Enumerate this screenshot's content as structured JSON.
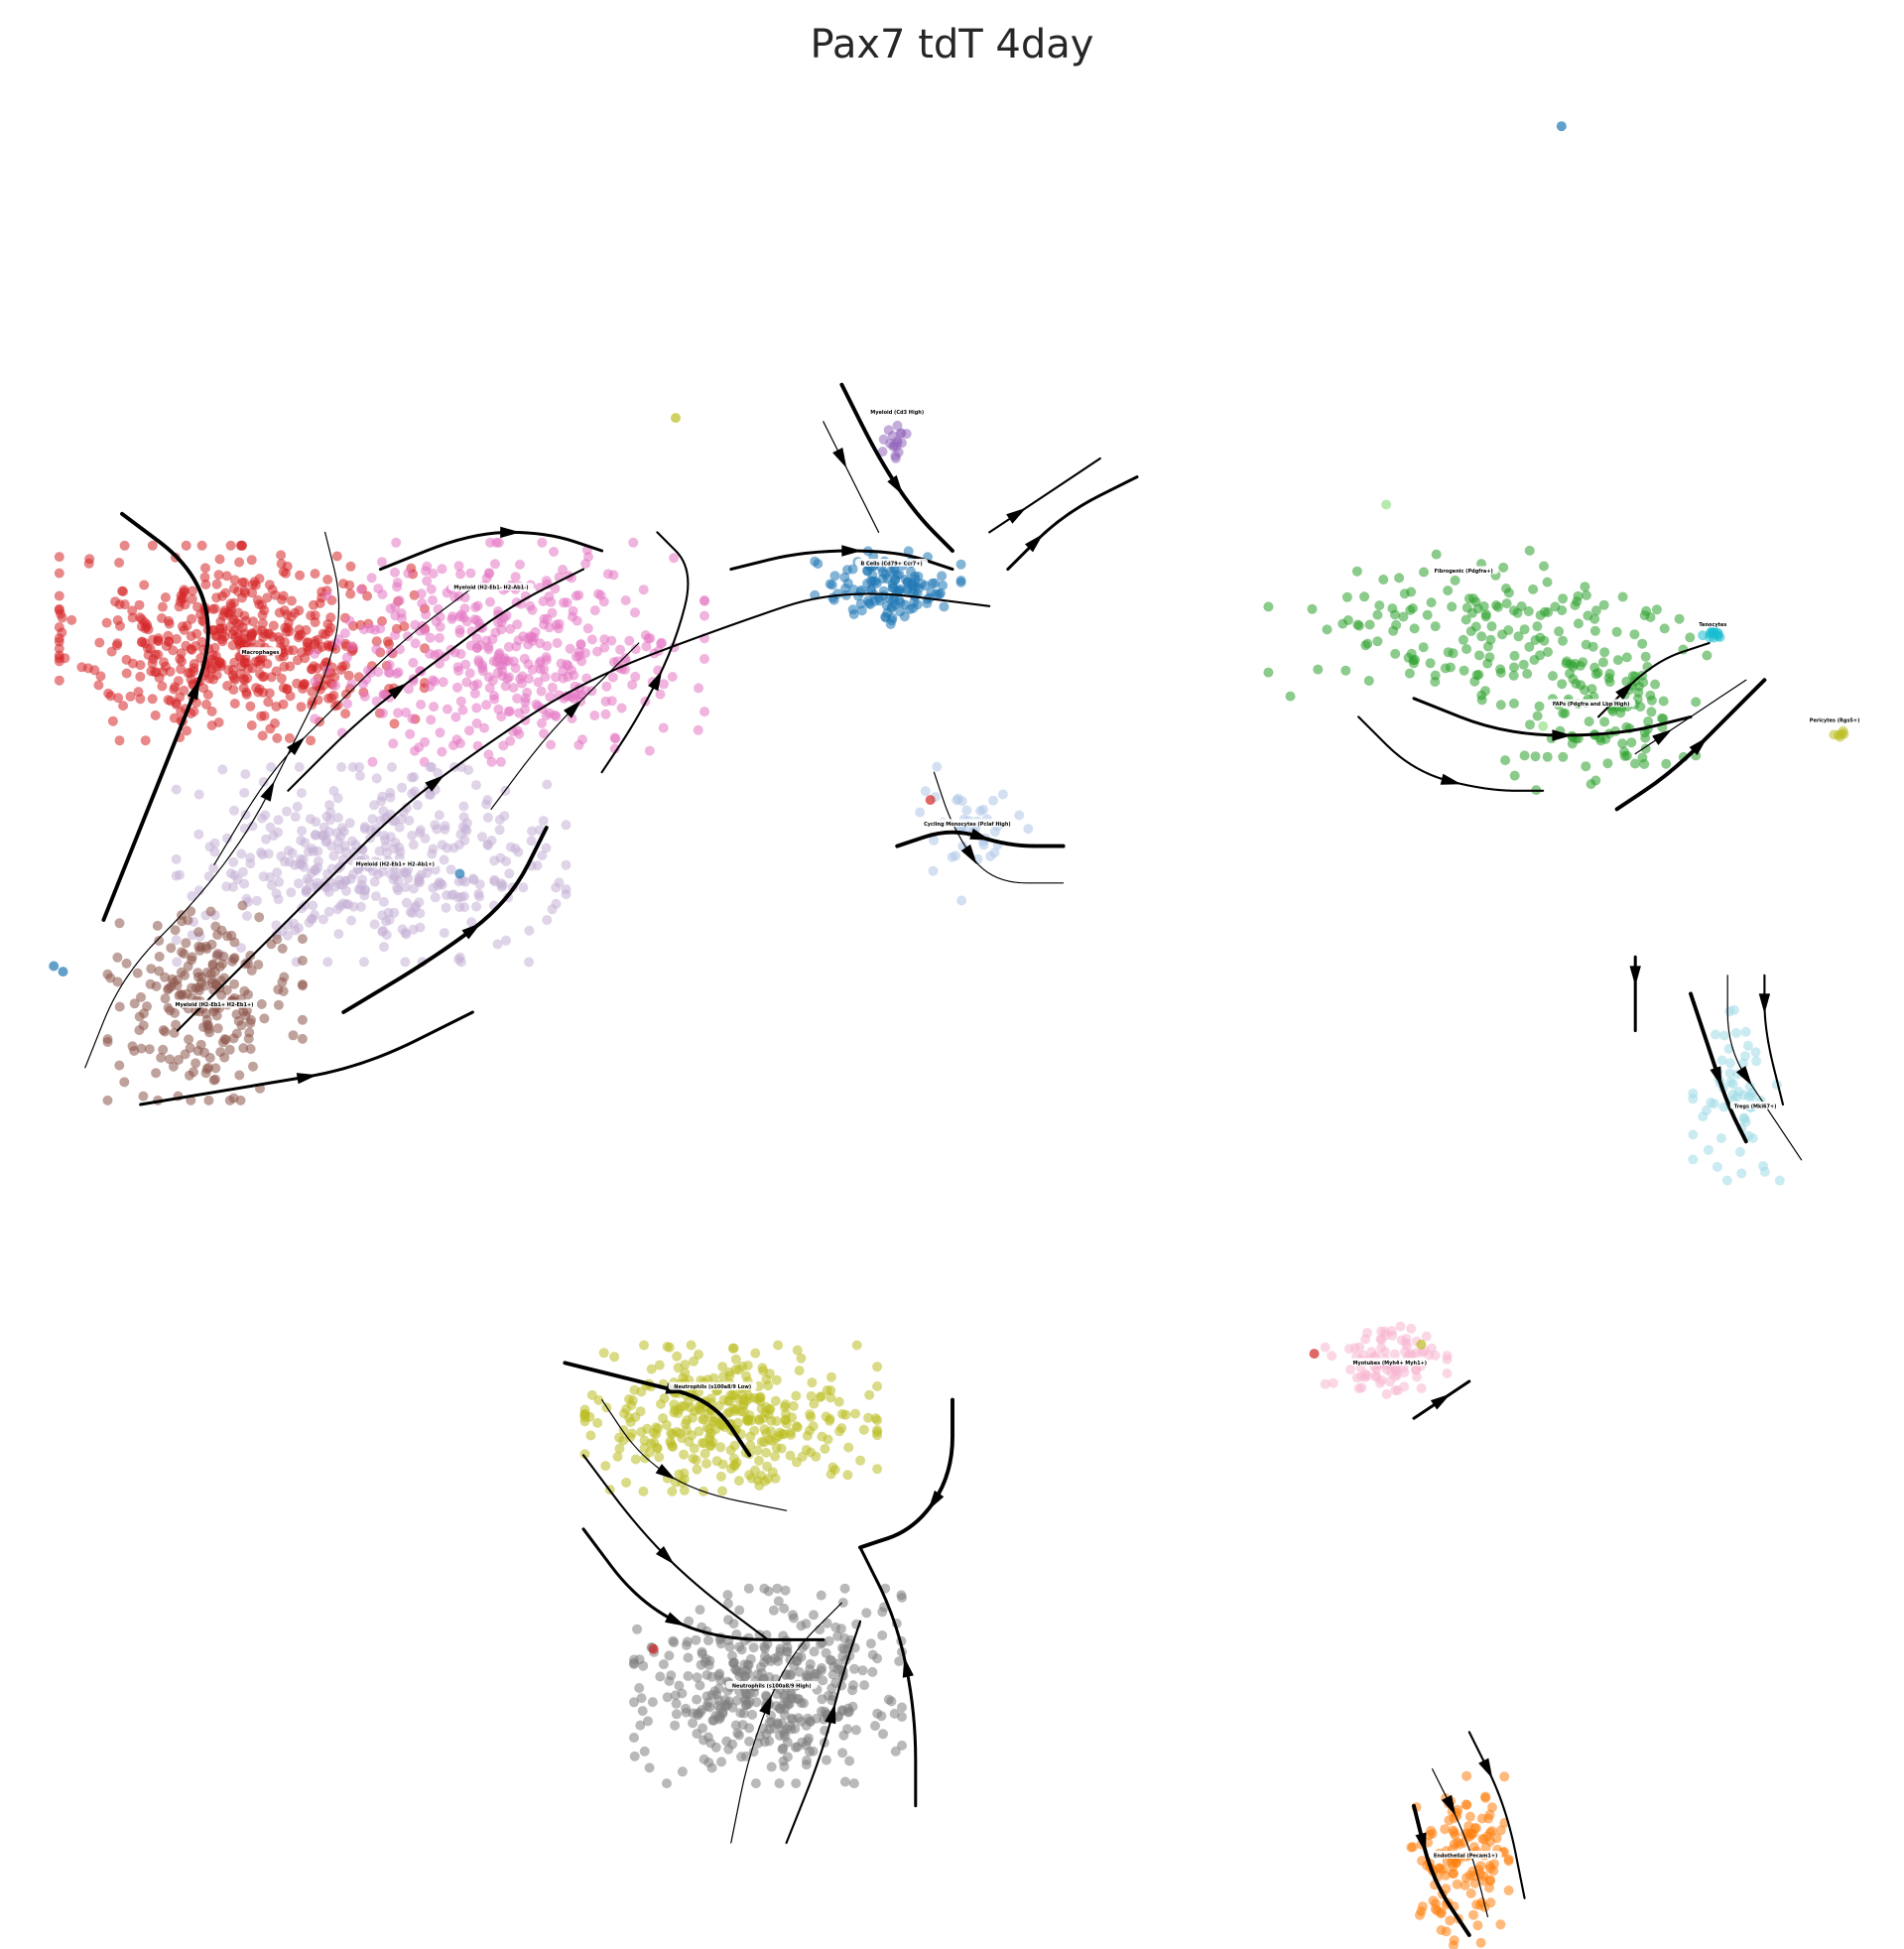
{
  "chart_data": {
    "type": "scatter",
    "title": "Pax7 tdT 4day",
    "xlabel": "",
    "ylabel": "",
    "grid": false,
    "axes_visible": false,
    "legend": "on data",
    "clusters": [
      {
        "name": "Macrophages",
        "color": "#d62728",
        "x": 0.115,
        "y": 0.7,
        "sx": 0.075,
        "sy": 0.04,
        "n": 520
      },
      {
        "name": "Myeloid (H2-Eb1- H2-Ab1-)",
        "color": "#e377c2",
        "x": 0.26,
        "y": 0.695,
        "sx": 0.08,
        "sy": 0.045,
        "n": 420
      },
      {
        "name": "Myeloid (H2-Eb1+ H2-Ab1+)",
        "color": "#c5b0d5",
        "x": 0.185,
        "y": 0.58,
        "sx": 0.08,
        "sy": 0.04,
        "n": 420
      },
      {
        "name": "Myeloid (H2-Eb1+ H2-Eb1+)",
        "color": "#8c564b",
        "x": 0.095,
        "y": 0.505,
        "sx": 0.04,
        "sy": 0.04,
        "n": 220
      },
      {
        "name": "Myeloid (Cd3 High)",
        "color": "#9467bd",
        "x": 0.47,
        "y": 0.81,
        "sx": 0.006,
        "sy": 0.008,
        "n": 18
      },
      {
        "name": "B Cells (Cd79+ Ccr7+)",
        "color": "#1f77b4",
        "x": 0.465,
        "y": 0.73,
        "sx": 0.03,
        "sy": 0.015,
        "n": 130
      },
      {
        "name": "Cycling Monocytes (Pclaf High)",
        "color": "#aec7e8",
        "x": 0.51,
        "y": 0.6,
        "sx": 0.025,
        "sy": 0.03,
        "n": 40
      },
      {
        "name": "Fibrogenic (Pdgfra+)",
        "color": "#2ca02c",
        "x": 0.79,
        "y": 0.705,
        "sx": 0.09,
        "sy": 0.035,
        "n": 160
      },
      {
        "name": "FAPs (Pdgfra and Lbp High)",
        "color": "#2ca02c",
        "x": 0.85,
        "y": 0.66,
        "sx": 0.04,
        "sy": 0.03,
        "n": 110
      },
      {
        "name": "Tenocytes",
        "color": "#17becf",
        "x": 0.91,
        "y": 0.705,
        "sx": 0.006,
        "sy": 0.003,
        "n": 12
      },
      {
        "name": "Pericytes (Rgs5+)",
        "color": "#bcbd22",
        "x": 0.98,
        "y": 0.652,
        "sx": 0.004,
        "sy": 0.003,
        "n": 6
      },
      {
        "name": "Tregs (Mki67+)",
        "color": "#9edae5",
        "x": 0.925,
        "y": 0.455,
        "sx": 0.018,
        "sy": 0.035,
        "n": 60
      },
      {
        "name": "Myotubes (Myh4+ Myh1+)",
        "color": "#f7b6d2",
        "x": 0.735,
        "y": 0.31,
        "sx": 0.025,
        "sy": 0.015,
        "n": 90
      },
      {
        "name": "Neutrophils (s100a8/9 Low)",
        "color": "#bcbd22",
        "x": 0.38,
        "y": 0.28,
        "sx": 0.06,
        "sy": 0.03,
        "n": 360
      },
      {
        "name": "Neutrophils (s100a8/9 High)",
        "color": "#7f7f7f",
        "x": 0.4,
        "y": 0.135,
        "sx": 0.055,
        "sy": 0.04,
        "n": 420
      },
      {
        "name": "Endothelial (Pecam1+)",
        "color": "#ff7f0e",
        "x": 0.775,
        "y": 0.04,
        "sx": 0.02,
        "sy": 0.035,
        "n": 140
      }
    ],
    "outliers": [
      {
        "color": "#1f77b4",
        "x": 0.83,
        "y": 0.98
      },
      {
        "color": "#98df8a",
        "x": 0.735,
        "y": 0.775
      },
      {
        "color": "#1f77b4",
        "x": 0.013,
        "y": 0.525
      },
      {
        "color": "#1f77b4",
        "x": 0.018,
        "y": 0.522
      },
      {
        "color": "#1f77b4",
        "x": 0.233,
        "y": 0.575
      },
      {
        "color": "#bcbd22",
        "x": 0.35,
        "y": 0.822
      },
      {
        "color": "#98df8a",
        "x": 0.82,
        "y": 0.655
      },
      {
        "color": "#d62728",
        "x": 0.696,
        "y": 0.315
      },
      {
        "color": "#d62728",
        "x": 0.338,
        "y": 0.155
      },
      {
        "color": "#d62728",
        "x": 0.488,
        "y": 0.615
      },
      {
        "color": "#bcbd22",
        "x": 0.754,
        "y": 0.32
      }
    ],
    "streamlines": [
      [
        [
          0.03,
          0.47
        ],
        [
          0.05,
          0.52
        ],
        [
          0.09,
          0.56
        ],
        [
          0.12,
          0.6
        ],
        [
          0.14,
          0.64
        ],
        [
          0.16,
          0.68
        ],
        [
          0.17,
          0.72
        ],
        [
          0.16,
          0.76
        ]
      ],
      [
        [
          0.08,
          0.49
        ],
        [
          0.12,
          0.53
        ],
        [
          0.16,
          0.57
        ],
        [
          0.2,
          0.61
        ],
        [
          0.24,
          0.64
        ],
        [
          0.3,
          0.68
        ],
        [
          0.38,
          0.71
        ],
        [
          0.44,
          0.73
        ],
        [
          0.52,
          0.72
        ]
      ],
      [
        [
          0.06,
          0.45
        ],
        [
          0.12,
          0.46
        ],
        [
          0.18,
          0.47
        ],
        [
          0.24,
          0.5
        ]
      ],
      [
        [
          0.04,
          0.55
        ],
        [
          0.06,
          0.6
        ],
        [
          0.08,
          0.65
        ],
        [
          0.1,
          0.7
        ],
        [
          0.09,
          0.74
        ],
        [
          0.05,
          0.77
        ]
      ],
      [
        [
          0.1,
          0.58
        ],
        [
          0.13,
          0.63
        ],
        [
          0.16,
          0.66
        ],
        [
          0.2,
          0.7
        ],
        [
          0.24,
          0.73
        ]
      ],
      [
        [
          0.14,
          0.62
        ],
        [
          0.18,
          0.66
        ],
        [
          0.22,
          0.69
        ],
        [
          0.26,
          0.72
        ],
        [
          0.3,
          0.74
        ]
      ],
      [
        [
          0.19,
          0.74
        ],
        [
          0.24,
          0.76
        ],
        [
          0.28,
          0.76
        ],
        [
          0.31,
          0.75
        ]
      ],
      [
        [
          0.17,
          0.5
        ],
        [
          0.22,
          0.53
        ],
        [
          0.26,
          0.56
        ],
        [
          0.28,
          0.6
        ]
      ],
      [
        [
          0.25,
          0.61
        ],
        [
          0.28,
          0.65
        ],
        [
          0.31,
          0.68
        ],
        [
          0.33,
          0.7
        ]
      ],
      [
        [
          0.31,
          0.63
        ],
        [
          0.33,
          0.66
        ],
        [
          0.35,
          0.7
        ],
        [
          0.36,
          0.74
        ],
        [
          0.34,
          0.76
        ]
      ],
      [
        [
          0.38,
          0.74
        ],
        [
          0.42,
          0.75
        ],
        [
          0.47,
          0.75
        ],
        [
          0.5,
          0.74
        ]
      ],
      [
        [
          0.44,
          0.84
        ],
        [
          0.46,
          0.8
        ],
        [
          0.48,
          0.77
        ],
        [
          0.5,
          0.75
        ]
      ],
      [
        [
          0.43,
          0.82
        ],
        [
          0.45,
          0.78
        ],
        [
          0.46,
          0.76
        ]
      ],
      [
        [
          0.52,
          0.76
        ],
        [
          0.55,
          0.78
        ],
        [
          0.58,
          0.8
        ]
      ],
      [
        [
          0.53,
          0.74
        ],
        [
          0.56,
          0.77
        ],
        [
          0.6,
          0.79
        ]
      ],
      [
        [
          0.47,
          0.59
        ],
        [
          0.5,
          0.6
        ],
        [
          0.53,
          0.59
        ],
        [
          0.56,
          0.59
        ]
      ],
      [
        [
          0.49,
          0.63
        ],
        [
          0.5,
          0.6
        ],
        [
          0.52,
          0.57
        ],
        [
          0.56,
          0.57
        ]
      ],
      [
        [
          0.72,
          0.66
        ],
        [
          0.75,
          0.63
        ],
        [
          0.79,
          0.62
        ],
        [
          0.82,
          0.62
        ]
      ],
      [
        [
          0.75,
          0.67
        ],
        [
          0.8,
          0.65
        ],
        [
          0.86,
          0.65
        ],
        [
          0.9,
          0.66
        ]
      ],
      [
        [
          0.86,
          0.61
        ],
        [
          0.89,
          0.63
        ],
        [
          0.92,
          0.66
        ],
        [
          0.94,
          0.68
        ]
      ],
      [
        [
          0.87,
          0.64
        ],
        [
          0.9,
          0.66
        ],
        [
          0.93,
          0.68
        ]
      ],
      [
        [
          0.85,
          0.66
        ],
        [
          0.88,
          0.69
        ],
        [
          0.91,
          0.7
        ]
      ],
      [
        [
          0.87,
          0.53
        ],
        [
          0.87,
          0.51
        ],
        [
          0.87,
          0.49
        ]
      ],
      [
        [
          0.9,
          0.51
        ],
        [
          0.91,
          0.48
        ],
        [
          0.92,
          0.45
        ],
        [
          0.93,
          0.43
        ]
      ],
      [
        [
          0.92,
          0.52
        ],
        [
          0.92,
          0.48
        ],
        [
          0.94,
          0.45
        ],
        [
          0.96,
          0.42
        ]
      ],
      [
        [
          0.94,
          0.52
        ],
        [
          0.94,
          0.49
        ],
        [
          0.95,
          0.45
        ]
      ],
      [
        [
          0.75,
          0.28
        ],
        [
          0.78,
          0.3
        ]
      ],
      [
        [
          0.29,
          0.31
        ],
        [
          0.33,
          0.3
        ],
        [
          0.37,
          0.29
        ],
        [
          0.39,
          0.26
        ]
      ],
      [
        [
          0.31,
          0.29
        ],
        [
          0.33,
          0.26
        ],
        [
          0.36,
          0.24
        ],
        [
          0.41,
          0.23
        ]
      ],
      [
        [
          0.3,
          0.26
        ],
        [
          0.33,
          0.22
        ],
        [
          0.36,
          0.19
        ],
        [
          0.4,
          0.16
        ]
      ],
      [
        [
          0.3,
          0.22
        ],
        [
          0.33,
          0.18
        ],
        [
          0.37,
          0.16
        ],
        [
          0.43,
          0.16
        ]
      ],
      [
        [
          0.5,
          0.29
        ],
        [
          0.5,
          0.25
        ],
        [
          0.48,
          0.22
        ],
        [
          0.45,
          0.21
        ]
      ],
      [
        [
          0.38,
          0.05
        ],
        [
          0.39,
          0.1
        ],
        [
          0.41,
          0.15
        ],
        [
          0.44,
          0.18
        ]
      ],
      [
        [
          0.41,
          0.05
        ],
        [
          0.43,
          0.1
        ],
        [
          0.44,
          0.14
        ],
        [
          0.45,
          0.17
        ]
      ],
      [
        [
          0.48,
          0.07
        ],
        [
          0.48,
          0.12
        ],
        [
          0.47,
          0.17
        ],
        [
          0.45,
          0.21
        ]
      ],
      [
        [
          0.75,
          0.07
        ],
        [
          0.76,
          0.03
        ],
        [
          0.78,
          0.0
        ]
      ],
      [
        [
          0.76,
          0.09
        ],
        [
          0.78,
          0.05
        ],
        [
          0.79,
          0.01
        ]
      ],
      [
        [
          0.78,
          0.11
        ],
        [
          0.8,
          0.07
        ],
        [
          0.81,
          0.02
        ]
      ]
    ],
    "cluster_labels": [
      {
        "text": "Macrophages",
        "x": 0.125,
        "y": 0.695
      },
      {
        "text": "Myeloid (H2-Eb1- H2-Ab1-)",
        "x": 0.25,
        "y": 0.73
      },
      {
        "text": "Myeloid (H2-Eb1+ H2-Ab1+)",
        "x": 0.198,
        "y": 0.58
      },
      {
        "text": "Myeloid (H2-Eb1+ H2-Eb1+)",
        "x": 0.1,
        "y": 0.504
      },
      {
        "text": "Myeloid (Cd3 High)",
        "x": 0.47,
        "y": 0.825
      },
      {
        "text": "B Cells (Cd79+ Ccr7+)",
        "x": 0.467,
        "y": 0.743
      },
      {
        "text": "Cycling Monocytes (Pclaf High)",
        "x": 0.508,
        "y": 0.602
      },
      {
        "text": "Fibrogenic (Pdgfra+)",
        "x": 0.777,
        "y": 0.739
      },
      {
        "text": "FAPs (Pdgfra and Lbp High)",
        "x": 0.846,
        "y": 0.667
      },
      {
        "text": "Tenocytes",
        "x": 0.912,
        "y": 0.71
      },
      {
        "text": "Pericytes (Rgs5+)",
        "x": 0.978,
        "y": 0.658
      },
      {
        "text": "Tregs (Mki67+)",
        "x": 0.935,
        "y": 0.449
      },
      {
        "text": "Myotubes (Myh4+ Myh1+)",
        "x": 0.737,
        "y": 0.31
      },
      {
        "text": "Neutrophils (s100a8/9 Low)",
        "x": 0.37,
        "y": 0.297
      },
      {
        "text": "Neutrophils (s100a8/9 High)",
        "x": 0.402,
        "y": 0.135
      },
      {
        "text": "Endothelial (Pecam1+)",
        "x": 0.778,
        "y": 0.043
      }
    ]
  }
}
